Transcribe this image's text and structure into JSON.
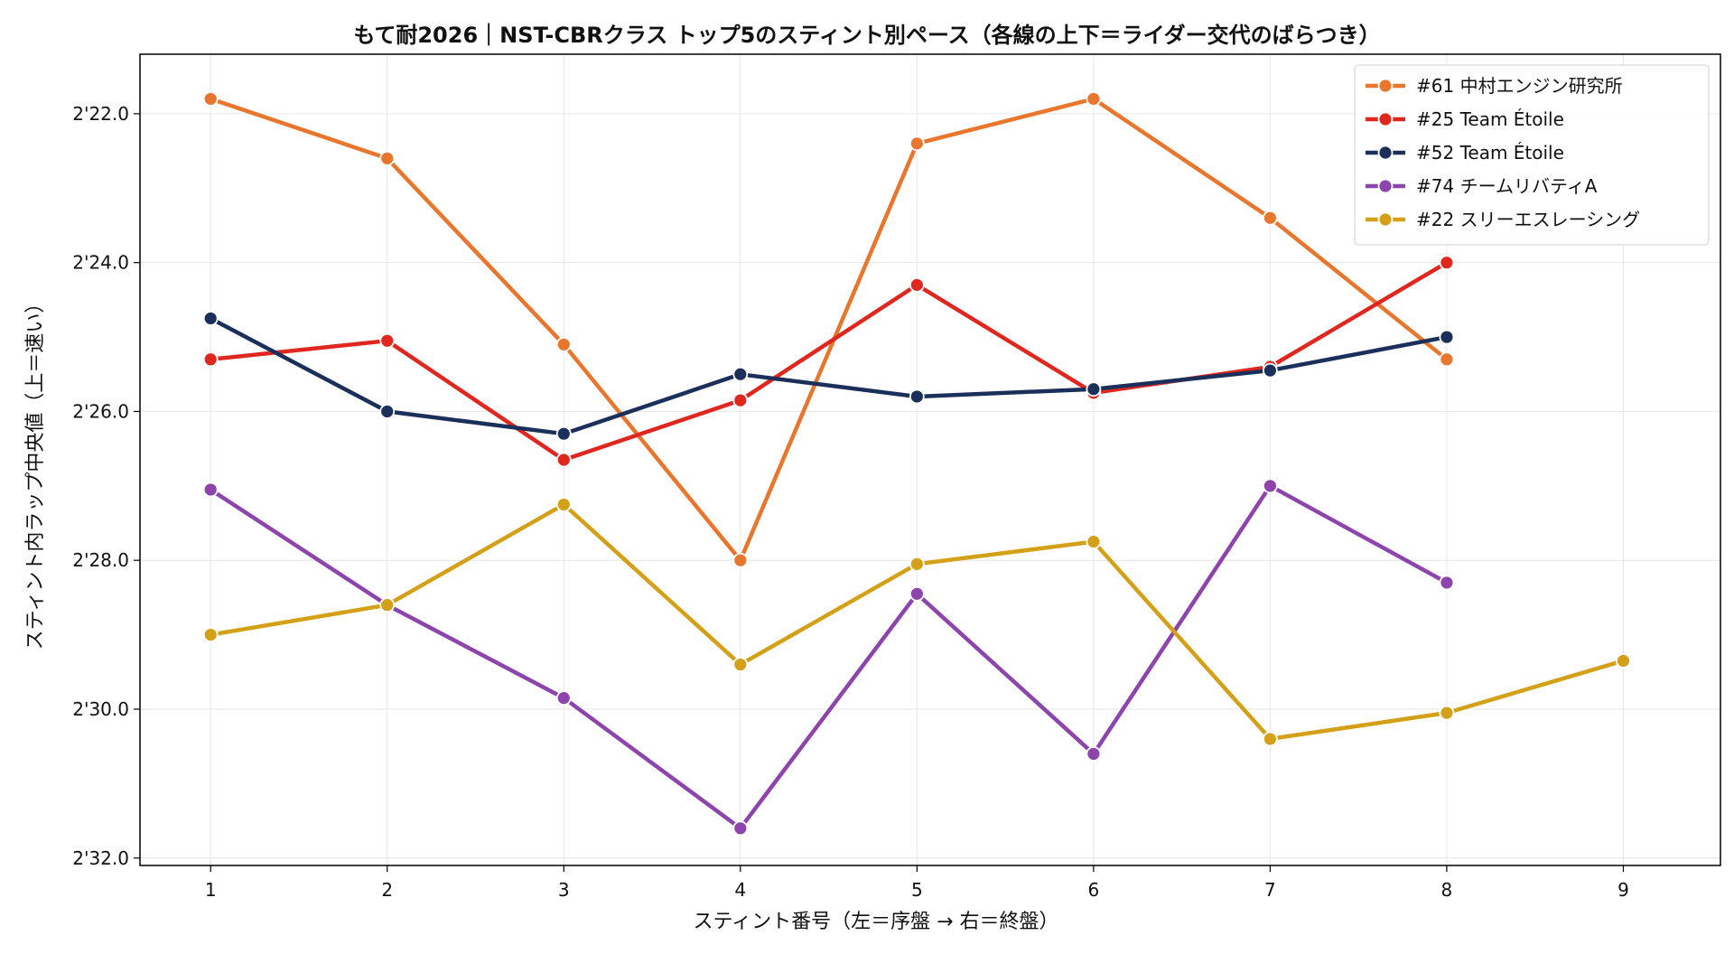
{
  "chart_data": {
    "type": "line",
    "title": "もて耐2026｜NST-CBRクラス トップ5のスティント別ペース（各線の上下＝ライダー交代のばらつき）",
    "xlabel": "スティント番号（左＝序盤 → 右＝終盤）",
    "ylabel": "スティント内ラップ中央値（上＝速い）",
    "x_ticks": [
      1,
      2,
      3,
      4,
      5,
      6,
      7,
      8,
      9
    ],
    "xlim": [
      0.6,
      9.55
    ],
    "y_unit": "seconds",
    "y_ticks": [
      142,
      144,
      146,
      148,
      150,
      152
    ],
    "y_tick_labels": [
      "2'22.0",
      "2'24.0",
      "2'26.0",
      "2'28.0",
      "2'30.0",
      "2'32.0"
    ],
    "ylim": [
      141.2,
      152.1
    ],
    "y_inverted": true,
    "grid": true,
    "legend_position": "top-right",
    "series": [
      {
        "name": "#61 中村エンジン研究所",
        "color": "#e8762d",
        "x": [
          1,
          2,
          3,
          4,
          5,
          6,
          7,
          8
        ],
        "values": [
          141.8,
          142.6,
          145.1,
          148.0,
          142.4,
          141.8,
          143.4,
          145.3
        ]
      },
      {
        "name": "#25 Team Étoile",
        "color": "#e0271f",
        "x": [
          1,
          2,
          3,
          4,
          5,
          6,
          7,
          8
        ],
        "values": [
          145.3,
          145.05,
          146.65,
          145.85,
          144.3,
          145.75,
          145.4,
          144.0
        ]
      },
      {
        "name": "#52 Team Étoile",
        "color": "#1a2f5a",
        "x": [
          1,
          2,
          3,
          4,
          5,
          6,
          7,
          8
        ],
        "values": [
          144.75,
          146.0,
          146.3,
          145.5,
          145.8,
          145.7,
          145.45,
          145.0
        ]
      },
      {
        "name": "#74 チームリバティA",
        "color": "#8e44ad",
        "x": [
          1,
          2,
          3,
          4,
          5,
          6,
          7,
          8
        ],
        "values": [
          147.05,
          148.6,
          149.85,
          151.6,
          148.45,
          150.6,
          147.0,
          148.3
        ]
      },
      {
        "name": "#22 スリーエスレーシング",
        "color": "#d4a017",
        "x": [
          1,
          2,
          3,
          4,
          5,
          6,
          7,
          8,
          9
        ],
        "values": [
          149.0,
          148.6,
          147.25,
          149.4,
          148.05,
          147.75,
          150.4,
          150.05,
          149.35
        ]
      }
    ]
  }
}
